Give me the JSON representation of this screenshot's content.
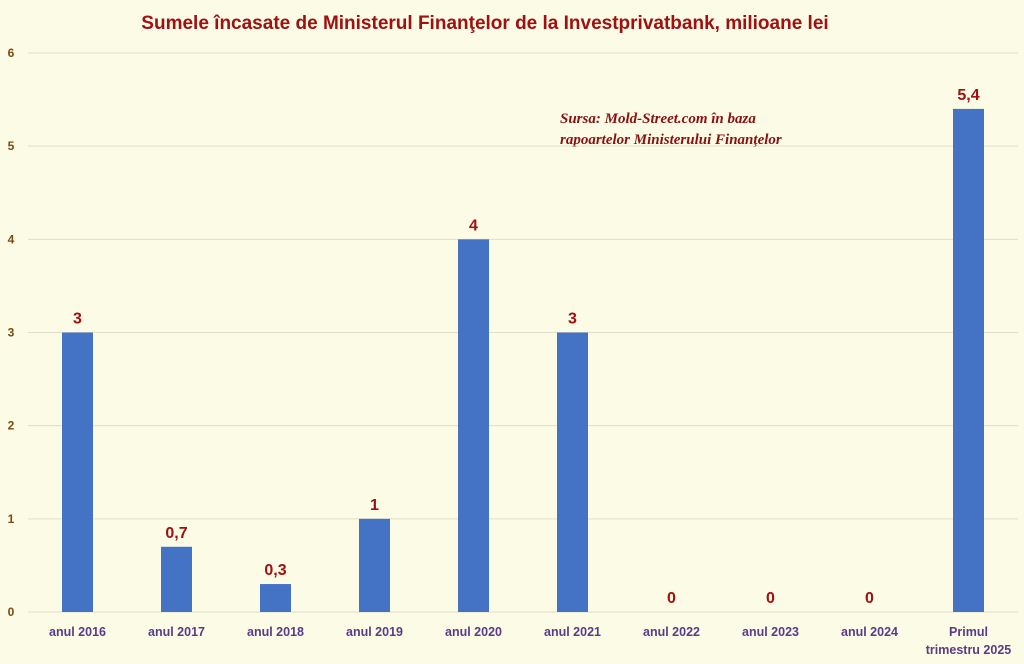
{
  "chart_data": {
    "type": "bar",
    "title": "Sumele încasate de Ministerul Finanţelor de la Investprivatbank, milioane lei",
    "annotation": [
      "Sursa: Mold-Street.com în baza",
      "rapoartelor Ministerului Finanţelor"
    ],
    "categories": [
      [
        "anul 2016"
      ],
      [
        "anul 2017"
      ],
      [
        "anul 2018"
      ],
      [
        "anul 2019"
      ],
      [
        "anul 2020"
      ],
      [
        "anul 2021"
      ],
      [
        "anul 2022"
      ],
      [
        "anul 2023"
      ],
      [
        "anul 2024"
      ],
      [
        "Primul",
        "trimestru 2025"
      ]
    ],
    "values": [
      3,
      0.7,
      0.3,
      1,
      4,
      3,
      0,
      0,
      0,
      5.4
    ],
    "value_labels": [
      "3",
      "0,7",
      "0,3",
      "1",
      "4",
      "3",
      "0",
      "0",
      "0",
      "5,4"
    ],
    "yticks": [
      "0",
      "1",
      "2",
      "3",
      "4",
      "5",
      "6"
    ],
    "ylim": [
      0,
      6
    ],
    "grid": true,
    "bar_color": "#4472c4"
  }
}
